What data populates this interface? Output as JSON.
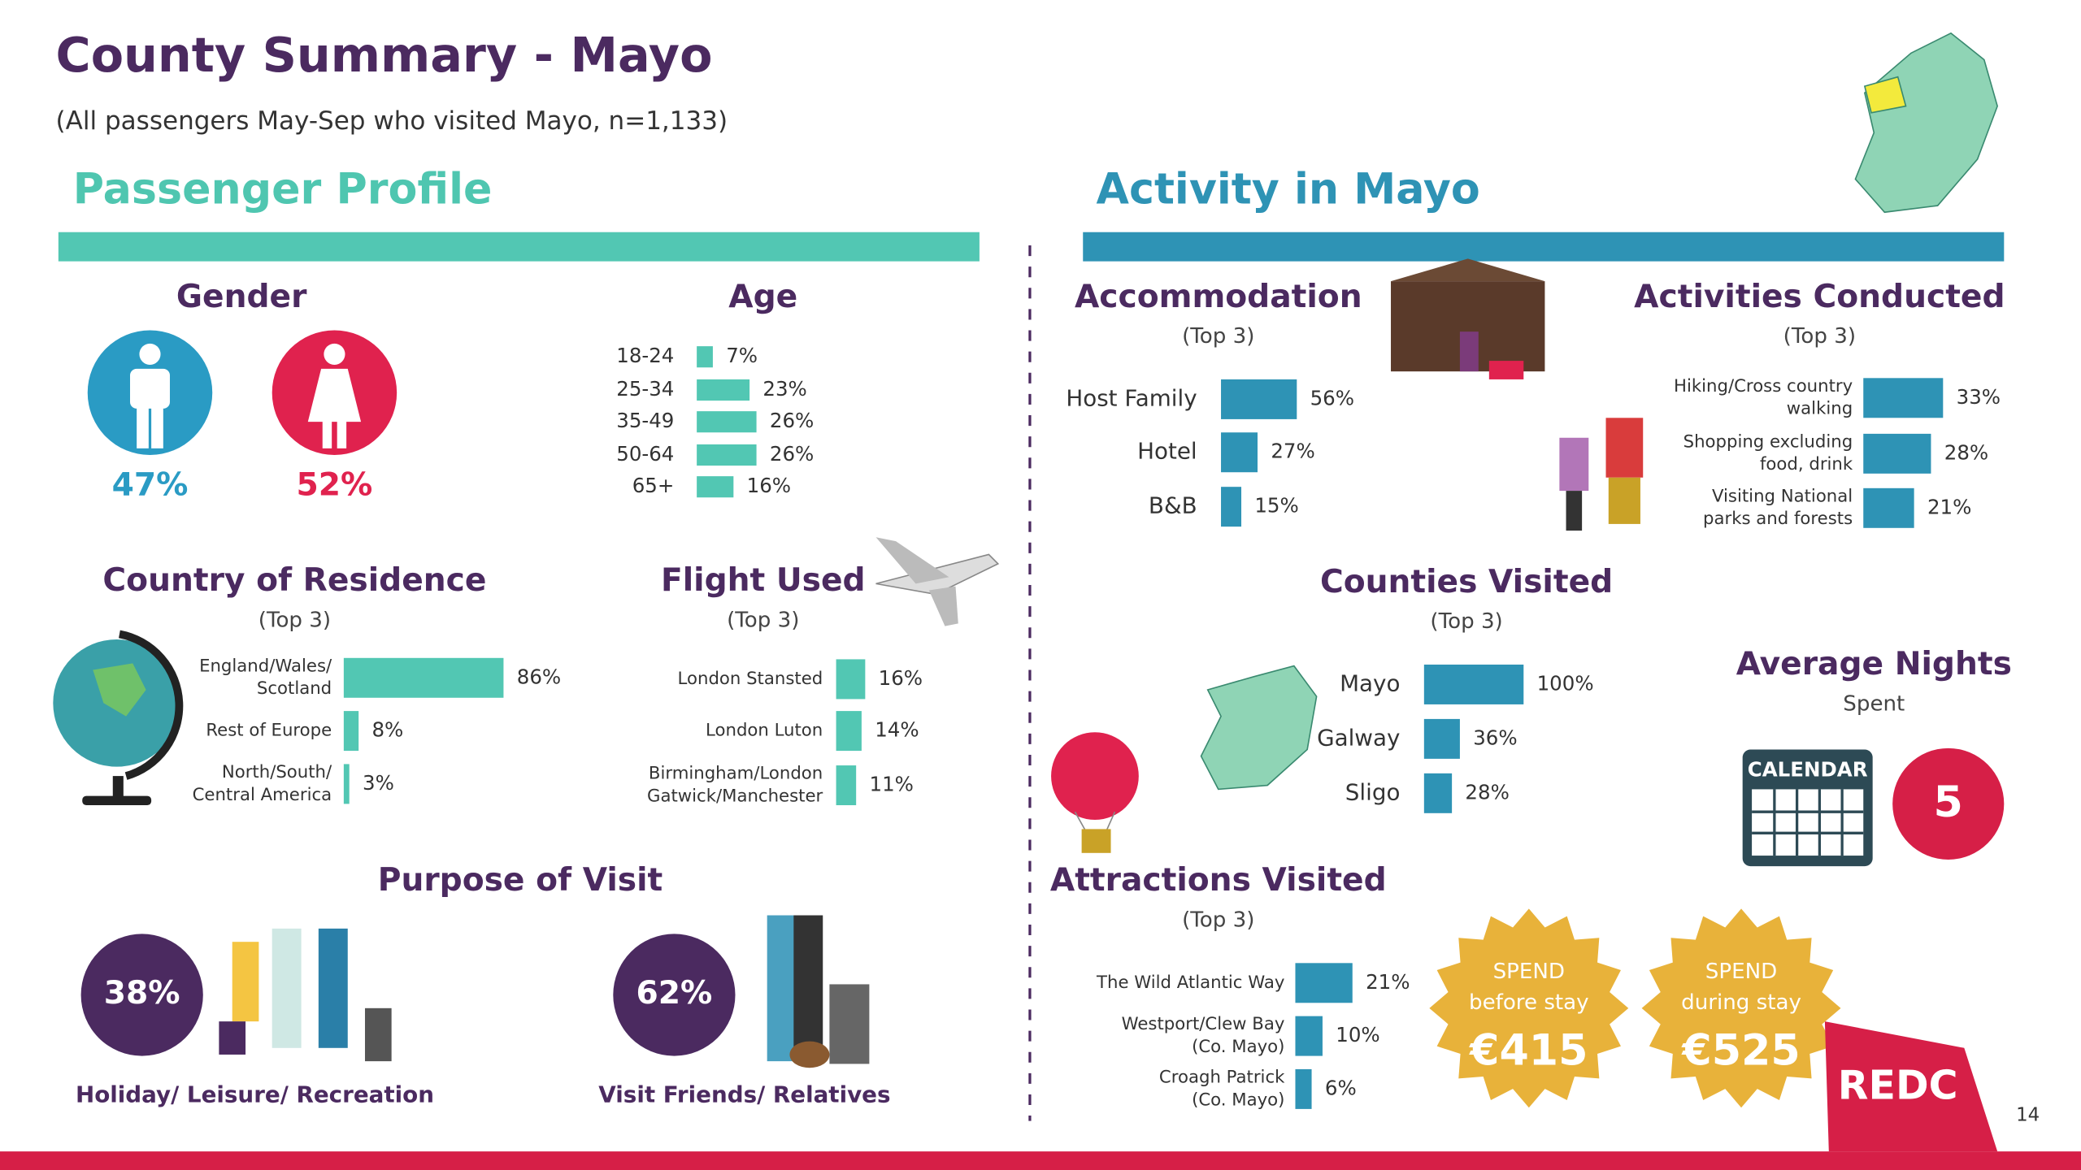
{
  "header": {
    "title": "County Summary - Mayo",
    "subtitle": "(All passengers May-Sep who visited Mayo, n=1,133)"
  },
  "passenger_profile": {
    "title": "Passenger Profile",
    "gender": {
      "title": "Gender",
      "male": "47%",
      "female": "52%"
    },
    "age": {
      "title": "Age",
      "color": "#52c7b3",
      "categories": [
        [
          "18-24"
        ],
        [
          "25-34"
        ],
        [
          "35-49"
        ],
        [
          "50-64"
        ],
        [
          "65+"
        ]
      ],
      "values": [
        7,
        23,
        26,
        26,
        16
      ],
      "value_labels": [
        "7%",
        "23%",
        "26%",
        "26%",
        "16%"
      ]
    },
    "country": {
      "title": "Country of Residence",
      "subtitle": "(Top 3)",
      "color": "#52c7b3",
      "categories": [
        [
          "England/Wales/",
          "Scotland"
        ],
        [
          "Rest of Europe"
        ],
        [
          "North/South/",
          "Central America"
        ]
      ],
      "values": [
        86,
        8,
        3
      ],
      "value_labels": [
        "86%",
        "8%",
        "3%"
      ]
    },
    "flight": {
      "title": "Flight Used",
      "subtitle": "(Top 3)",
      "color": "#52c7b3",
      "categories": [
        [
          "London Stansted"
        ],
        [
          "London Luton"
        ],
        [
          "Birmingham/London",
          "Gatwick/Manchester"
        ]
      ],
      "values": [
        16,
        14,
        11
      ],
      "value_labels": [
        "16%",
        "14%",
        "11%"
      ]
    },
    "purpose": {
      "title": "Purpose of Visit",
      "items": [
        {
          "share": "38%",
          "name": "Holiday/ Leisure/ Recreation"
        },
        {
          "share": "62%",
          "name": "Visit Friends/ Relatives"
        }
      ]
    }
  },
  "activity": {
    "title": "Activity in Mayo",
    "accommodation": {
      "title": "Accommodation",
      "subtitle": "(Top 3)",
      "color": "#2e93b5",
      "categories": [
        [
          "Host Family"
        ],
        [
          "Hotel"
        ],
        [
          "B&B"
        ]
      ],
      "values": [
        56,
        27,
        15
      ],
      "value_labels": [
        "56%",
        "27%",
        "15%"
      ]
    },
    "activities": {
      "title": "Activities Conducted",
      "subtitle": "(Top 3)",
      "color": "#2e93b5",
      "categories": [
        [
          "Hiking/Cross country",
          "walking"
        ],
        [
          "Shopping excluding",
          "food, drink"
        ],
        [
          "Visiting National",
          "parks and forests"
        ]
      ],
      "values": [
        33,
        28,
        21
      ],
      "value_labels": [
        "33%",
        "28%",
        "21%"
      ]
    },
    "counties": {
      "title": "Counties Visited",
      "subtitle": "(Top 3)",
      "color": "#2e93b5",
      "categories": [
        [
          "Mayo"
        ],
        [
          "Galway"
        ],
        [
          "Sligo"
        ]
      ],
      "values": [
        100,
        36,
        28
      ],
      "value_labels": [
        "100%",
        "36%",
        "28%"
      ]
    },
    "attractions": {
      "title": "Attractions Visited",
      "subtitle": "(Top 3)",
      "color": "#2e93b5",
      "categories": [
        [
          "The Wild Atlantic Way"
        ],
        [
          "Westport/Clew Bay",
          "(Co. Mayo)"
        ],
        [
          "Croagh Patrick",
          "(Co. Mayo)"
        ]
      ],
      "values": [
        21,
        10,
        6
      ],
      "value_labels": [
        "21%",
        "10%",
        "6%"
      ]
    },
    "nights": {
      "title": "Average Nights",
      "subtitle": "Spent",
      "icon": "CALENDAR",
      "value": 5
    },
    "spend": [
      {
        "line1": "SPEND",
        "line2": "before stay",
        "amount": "€415"
      },
      {
        "line1": "SPEND",
        "line2": "during stay",
        "amount": "€525"
      }
    ]
  },
  "footer": {
    "brand": "REDC",
    "page": "14"
  }
}
